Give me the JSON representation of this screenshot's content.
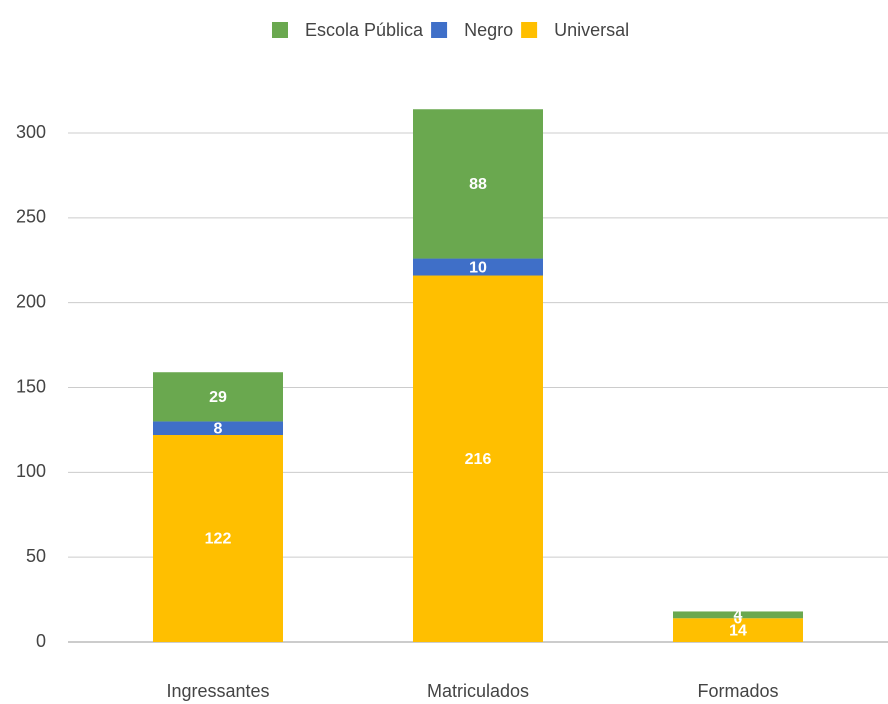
{
  "chart_data": {
    "type": "stacked_bar",
    "categories": [
      "Ingressantes",
      "Matriculados",
      "Formados"
    ],
    "series": [
      {
        "name": "Universal",
        "color": "#ffbf00",
        "values": [
          122,
          216,
          14
        ]
      },
      {
        "name": "Negro",
        "color": "#3f6fc8",
        "values": [
          8,
          10,
          0
        ]
      },
      {
        "name": "Escola Pública",
        "color": "#6aa84f",
        "values": [
          29,
          88,
          4
        ]
      }
    ],
    "legend_order": [
      "Escola Pública",
      "Negro",
      "Universal"
    ],
    "legend": "top",
    "ylim": [
      0,
      300
    ],
    "yticks": [
      0,
      50,
      100,
      150,
      200,
      250,
      300
    ],
    "grid": true
  }
}
